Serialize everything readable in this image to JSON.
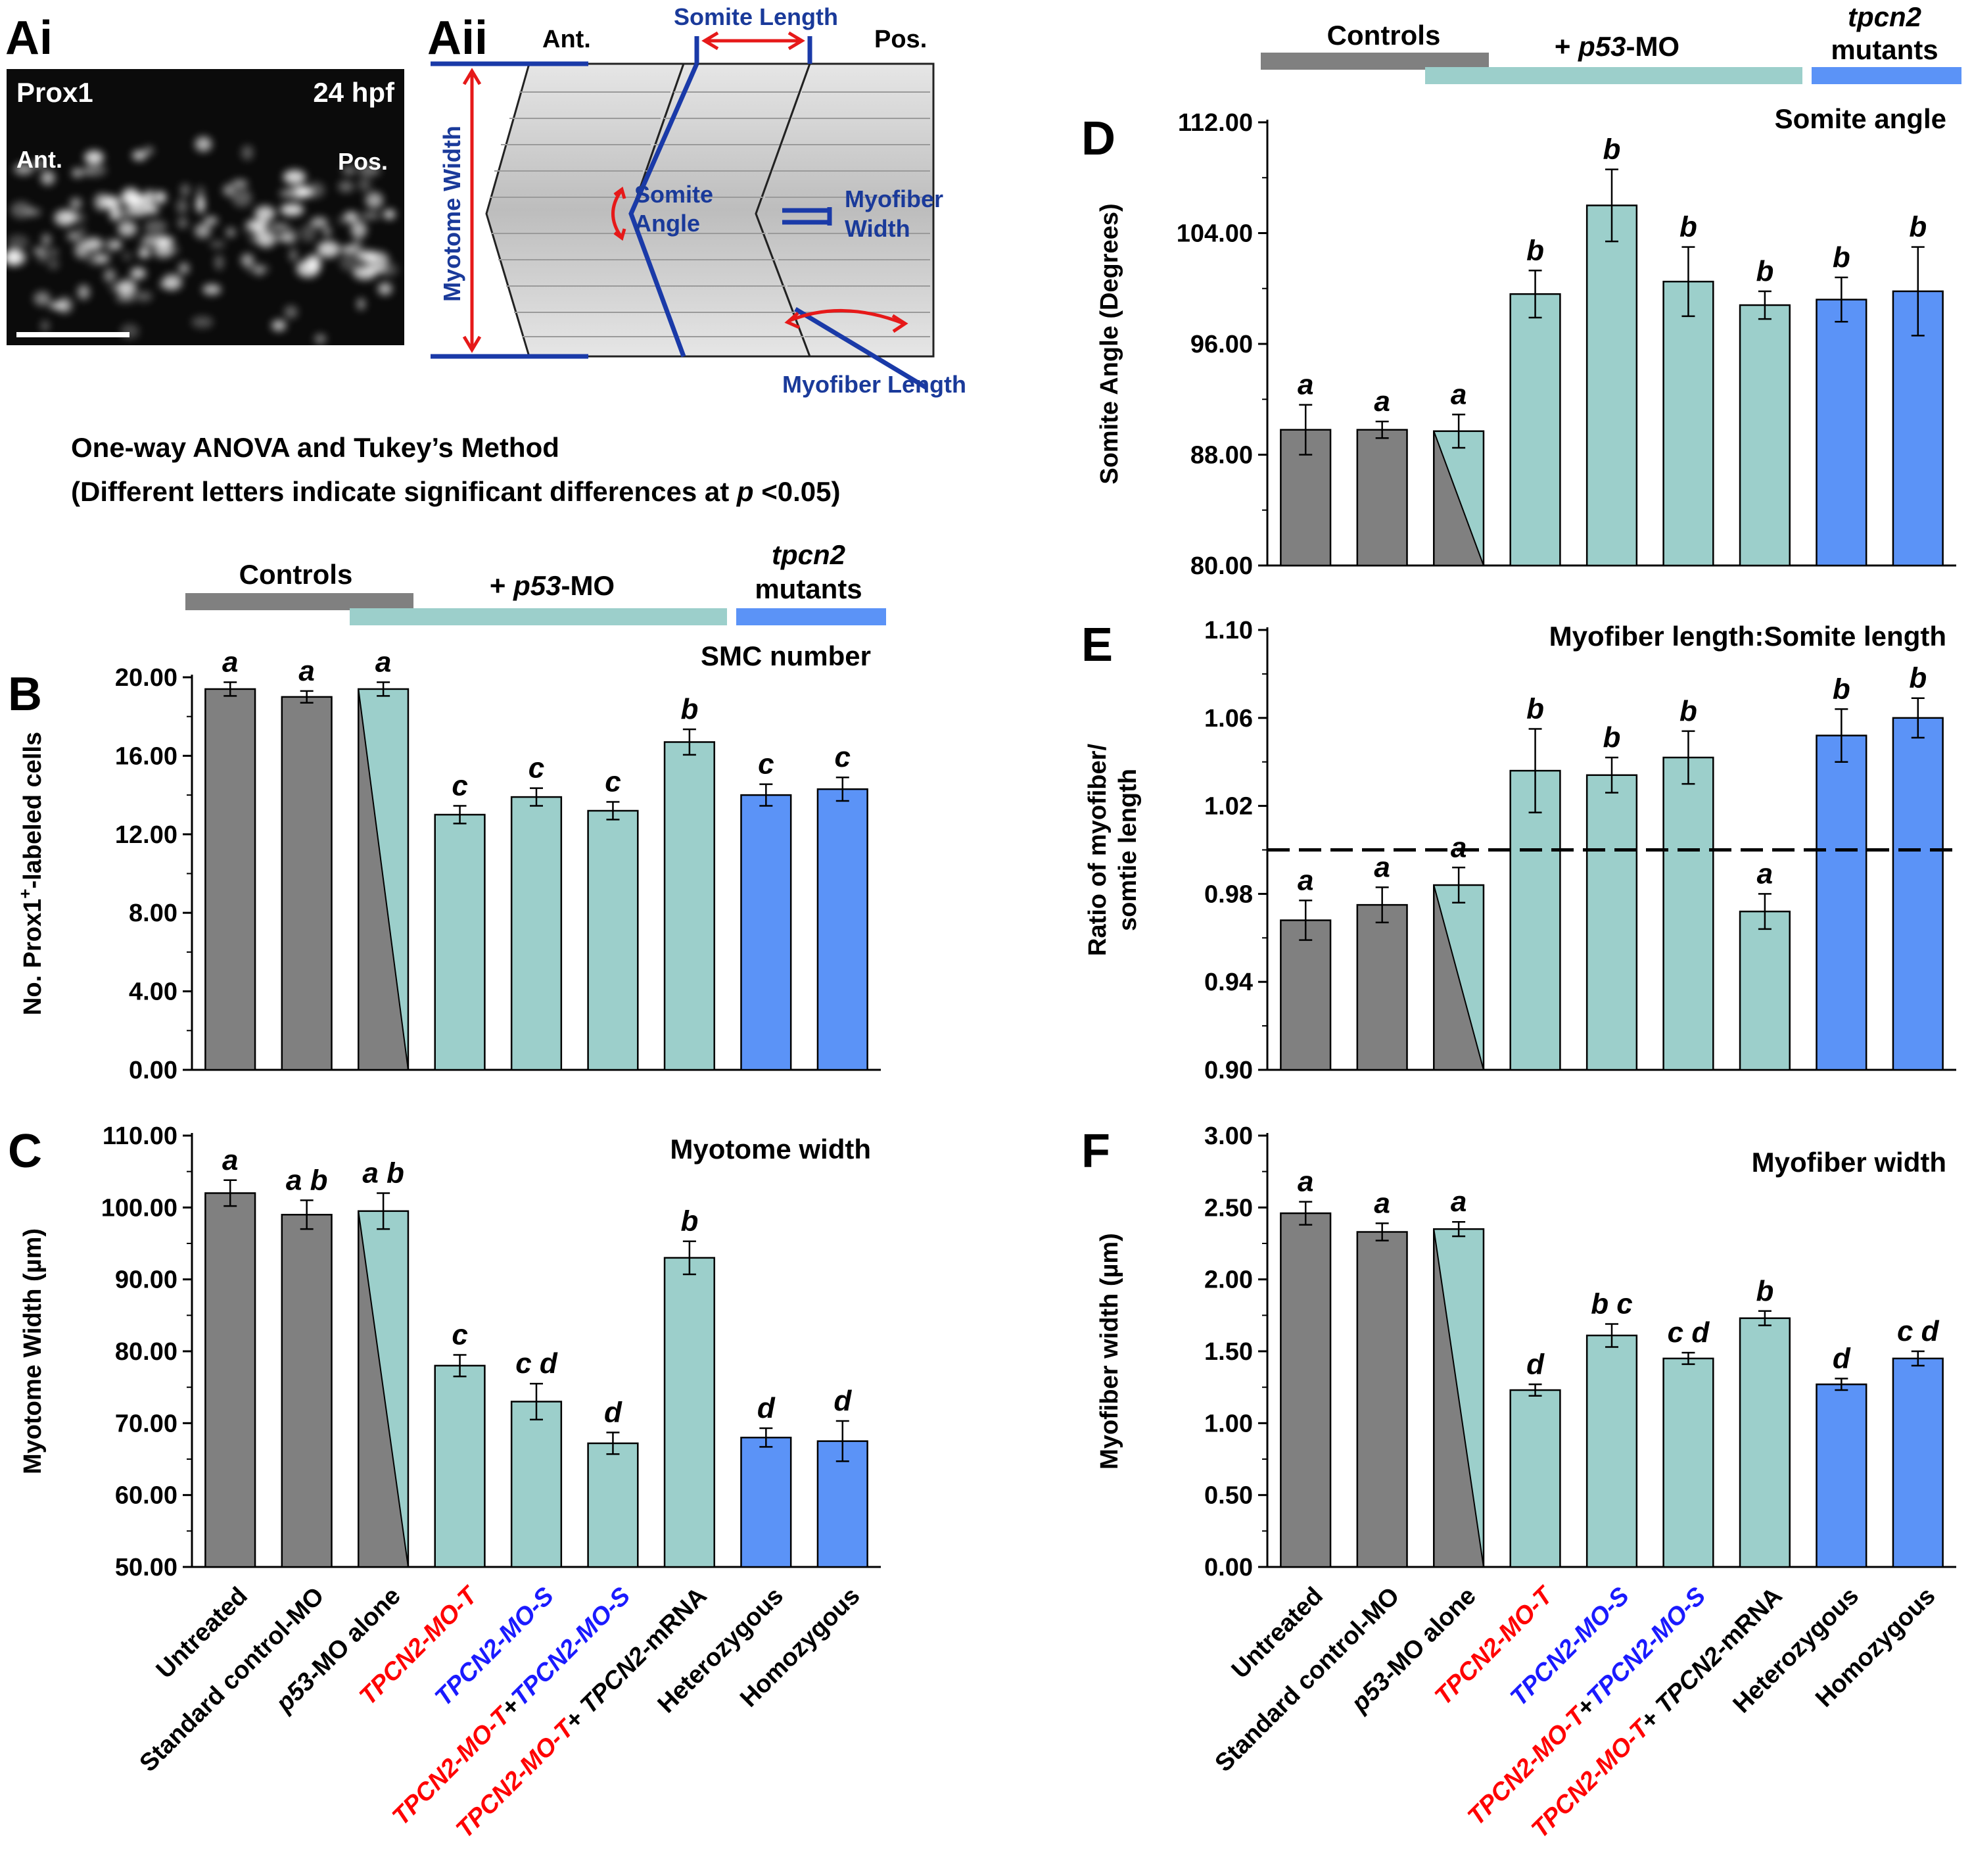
{
  "panels": {
    "ai": {
      "letter": "Ai",
      "stain": "Prox1",
      "stage": "24 hpf",
      "ant": "Ant.",
      "pos": "Pos."
    },
    "aii": {
      "letter": "Aii",
      "ant": "Ant.",
      "pos": "Pos.",
      "somite_length": "Somite Length",
      "myotome_width": "Myotome Width",
      "somite_angle_1": "Somite",
      "somite_angle_2": "Angle",
      "myofiber_width_1": "Myofiber",
      "myofiber_width_2": "Width",
      "myofiber_length": "Myofiber Length"
    }
  },
  "stats": {
    "line1": "One-way ANOVA and Tukey’s Method",
    "line2_prefix": "(Different letters indicate significant differences at ",
    "line2_p": "p",
    "line2_suffix": " <0.05)"
  },
  "groups": {
    "controls": "Controls",
    "p53_prefix": "+ ",
    "p53_italic": "p53",
    "p53_suffix": "-MO",
    "mutants_1": "tpcn2",
    "mutants_2": "mutants"
  },
  "colors": {
    "control": "#808080",
    "p53mo": "#9ccfcb",
    "mutant": "#5b93f7",
    "red_label": "#ff0000",
    "blue_label": "#1a1aff"
  },
  "categories": [
    {
      "parts": [
        {
          "t": "Untreated",
          "c": "#000000"
        }
      ]
    },
    {
      "parts": [
        {
          "t": "Standard control-MO",
          "c": "#000000"
        }
      ]
    },
    {
      "parts": [
        {
          "t": "p53",
          "c": "#000000",
          "i": true
        },
        {
          "t": "-MO alone",
          "c": "#000000"
        }
      ]
    },
    {
      "parts": [
        {
          "t": "TPCN2-MO-T",
          "c": "#ff0000",
          "i": true
        }
      ]
    },
    {
      "parts": [
        {
          "t": "TPCN2-MO-S",
          "c": "#1a1aff",
          "i": true
        }
      ]
    },
    {
      "parts": [
        {
          "t": "TPCN2-MO-T",
          "c": "#ff0000",
          "i": true
        },
        {
          "t": "+",
          "c": "#000000"
        },
        {
          "t": "TPCN2-MO-S",
          "c": "#1a1aff",
          "i": true
        }
      ]
    },
    {
      "parts": [
        {
          "t": "TPCN2-MO-T",
          "c": "#ff0000",
          "i": true
        },
        {
          "t": "+ ",
          "c": "#000000"
        },
        {
          "t": "TPCN2",
          "c": "#000000",
          "i": true
        },
        {
          "t": "-mRNA",
          "c": "#000000"
        }
      ]
    },
    {
      "parts": [
        {
          "t": "Heterozygous",
          "c": "#000000"
        }
      ]
    },
    {
      "parts": [
        {
          "t": "Homozygous",
          "c": "#000000"
        }
      ]
    }
  ],
  "bar_styles": [
    "control",
    "control",
    "split",
    "p53mo",
    "p53mo",
    "p53mo",
    "p53mo",
    "mutant",
    "mutant"
  ],
  "chart_data": [
    {
      "id": "B",
      "letter": "B",
      "type": "bar",
      "title": "SMC number",
      "ylabel_pre": "No. Prox1",
      "ylabel_sup": "+",
      "ylabel_post": "-labeled cells",
      "ylim": [
        0,
        20
      ],
      "yticks": [
        0,
        4,
        8,
        12,
        16,
        20
      ],
      "ytick_labels": [
        "0.00",
        "4.00",
        "8.00",
        "12.00",
        "16.00",
        "20.00"
      ],
      "values": [
        19.4,
        19.0,
        19.4,
        13.0,
        13.9,
        13.2,
        16.7,
        14.0,
        14.3
      ],
      "errors": [
        0.35,
        0.3,
        0.35,
        0.45,
        0.45,
        0.45,
        0.65,
        0.55,
        0.6
      ],
      "letters": [
        "a",
        "a",
        "a",
        "c",
        "c",
        "c",
        "b",
        "c",
        "c"
      ]
    },
    {
      "id": "C",
      "letter": "C",
      "type": "bar",
      "title": "Myotome width",
      "ylabel": "Myotome Width (µm)",
      "ylim": [
        50,
        110
      ],
      "yticks": [
        50,
        60,
        70,
        80,
        90,
        100,
        110
      ],
      "ytick_labels": [
        "50.00",
        "60.00",
        "70.00",
        "80.00",
        "90.00",
        "100.00",
        "110.00"
      ],
      "values": [
        102.0,
        99.0,
        99.5,
        78.0,
        73.0,
        67.2,
        93.0,
        68.0,
        67.5
      ],
      "errors": [
        1.8,
        2.0,
        2.5,
        1.5,
        2.5,
        1.5,
        2.3,
        1.3,
        2.8
      ],
      "letters": [
        "a",
        "a b",
        "a b",
        "c",
        "c d",
        "d",
        "b",
        "d",
        "d"
      ]
    },
    {
      "id": "D",
      "letter": "D",
      "type": "bar",
      "title": "Somite angle",
      "ylabel": "Somite Angle (Degrees)",
      "ylim": [
        80,
        112
      ],
      "yticks": [
        80,
        88,
        96,
        104,
        112
      ],
      "ytick_labels": [
        "80.00",
        "88.00",
        "96.00",
        "104.00",
        "112.00"
      ],
      "values": [
        89.8,
        89.8,
        89.7,
        99.6,
        106.0,
        100.5,
        98.8,
        99.2,
        99.8
      ],
      "errors": [
        1.8,
        0.6,
        1.2,
        1.7,
        2.6,
        2.5,
        1.0,
        1.6,
        3.2
      ],
      "letters": [
        "a",
        "a",
        "a",
        "b",
        "b",
        "b",
        "b",
        "b",
        "b"
      ]
    },
    {
      "id": "E",
      "letter": "E",
      "type": "bar",
      "title": "Myofiber length:Somite length",
      "ylabel_1": "Ratio of myofiber/",
      "ylabel_2": "somtie length",
      "ylim": [
        0.9,
        1.1
      ],
      "yticks": [
        0.9,
        0.94,
        0.98,
        1.02,
        1.06,
        1.1
      ],
      "ytick_labels": [
        "0.90",
        "0.94",
        "0.98",
        "1.02",
        "1.06",
        "1.10"
      ],
      "reference_line": 1.0,
      "values": [
        0.968,
        0.975,
        0.984,
        1.036,
        1.034,
        1.042,
        0.972,
        1.052,
        1.06
      ],
      "errors": [
        0.009,
        0.008,
        0.008,
        0.019,
        0.008,
        0.012,
        0.008,
        0.012,
        0.009
      ],
      "letters": [
        "a",
        "a",
        "a",
        "b",
        "b",
        "b",
        "a",
        "b",
        "b"
      ]
    },
    {
      "id": "F",
      "letter": "F",
      "type": "bar",
      "title": "Myofiber width",
      "ylabel": "Myofiber  width (µm)",
      "ylim": [
        0,
        3
      ],
      "yticks": [
        0,
        0.5,
        1,
        1.5,
        2,
        2.5,
        3
      ],
      "ytick_labels": [
        "0.00",
        "0.50",
        "1.00",
        "1.50",
        "2.00",
        "2.50",
        "3.00"
      ],
      "values": [
        2.46,
        2.33,
        2.35,
        1.23,
        1.61,
        1.45,
        1.73,
        1.27,
        1.45
      ],
      "errors": [
        0.08,
        0.06,
        0.05,
        0.04,
        0.08,
        0.04,
        0.05,
        0.04,
        0.05
      ],
      "letters": [
        "a",
        "a",
        "a",
        "d",
        "b c",
        "c d",
        "b",
        "d",
        "c d"
      ]
    }
  ]
}
